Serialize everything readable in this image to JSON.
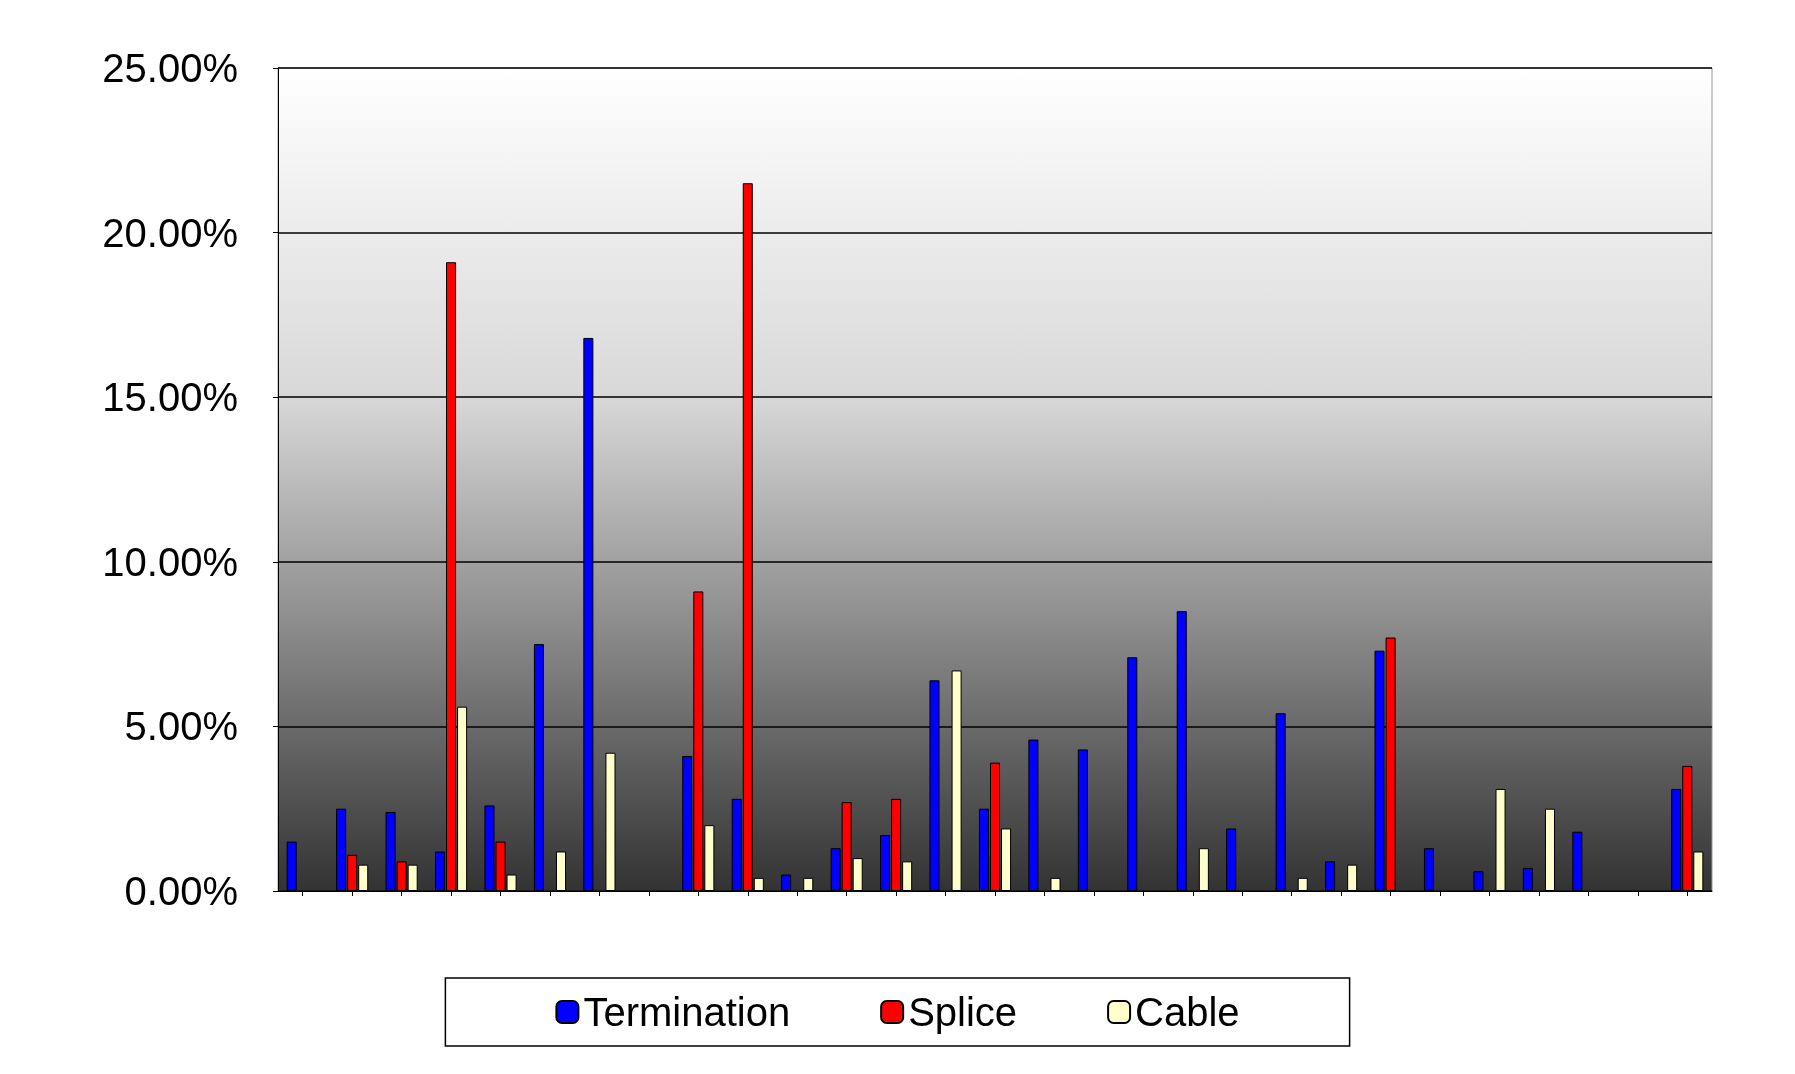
{
  "chart_data": {
    "type": "bar",
    "categories": [
      null,
      null,
      null,
      null,
      null,
      null,
      null,
      null,
      null,
      null,
      null,
      null,
      null,
      null,
      null,
      null,
      null,
      null,
      null,
      null,
      null,
      null,
      null,
      null,
      null,
      null,
      null,
      null,
      null
    ],
    "series": [
      {
        "name": "Termination",
        "color": "#0000ff",
        "values": [
          1.5,
          2.5,
          2.4,
          1.2,
          2.6,
          7.5,
          16.8,
          0,
          4.1,
          2.8,
          0.5,
          1.3,
          1.7,
          6.4,
          2.5,
          4.6,
          4.3,
          7.1,
          8.5,
          1.9,
          5.4,
          0.9,
          7.3,
          1.3,
          0.6,
          0.7,
          1.8,
          0,
          3.1
        ]
      },
      {
        "name": "Splice",
        "color": "#ff0000",
        "values": [
          0,
          1.1,
          0.9,
          19.1,
          1.5,
          0,
          0,
          0,
          9.1,
          21.5,
          0,
          2.7,
          2.8,
          0,
          3.9,
          0,
          0,
          0,
          0,
          0,
          0,
          0,
          7.7,
          0,
          0,
          0,
          0,
          0,
          3.8
        ]
      },
      {
        "name": "Cable",
        "color": "#ffffcc",
        "values": [
          0,
          0.8,
          0.8,
          5.6,
          0.5,
          1.2,
          4.2,
          0,
          2.0,
          0.4,
          0.4,
          1.0,
          0.9,
          6.7,
          1.9,
          0.4,
          0,
          0,
          1.3,
          0,
          0.4,
          0.8,
          0,
          0,
          3.1,
          2.5,
          0,
          0,
          1.2
        ]
      }
    ],
    "ylim": [
      0,
      25
    ],
    "yticks": [
      {
        "value": 0,
        "label": "0.00%"
      },
      {
        "value": 5,
        "label": "5.00%"
      },
      {
        "value": 10,
        "label": "10.00%"
      },
      {
        "value": 15,
        "label": "15.00%"
      },
      {
        "value": 20,
        "label": "20.00%"
      },
      {
        "value": 25,
        "label": "25.00%"
      }
    ],
    "grid": "y",
    "legend": "bottom"
  }
}
